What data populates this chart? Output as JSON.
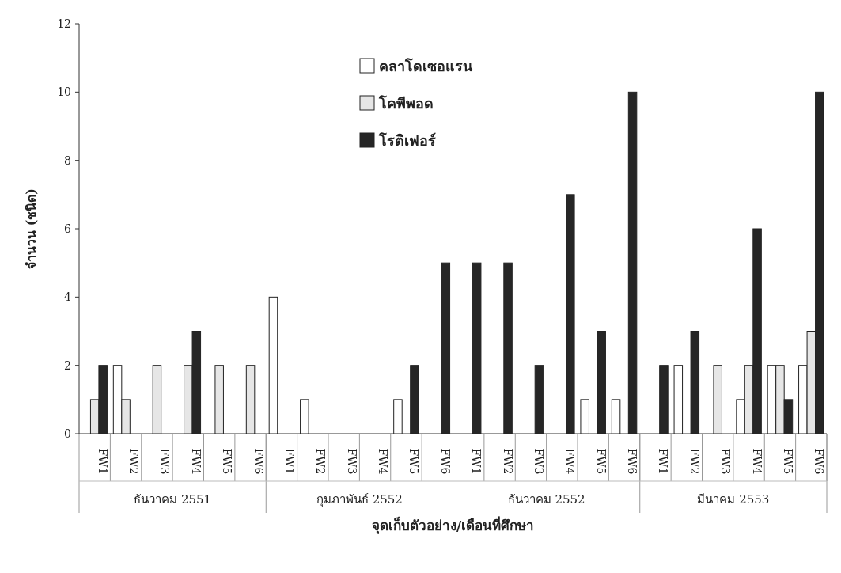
{
  "chart_data": {
    "type": "bar",
    "xlabel": "จุดเก็บตัวอย่าง/เดือนที่ศึกษา",
    "ylabel": "จำนวน (ชนิด)",
    "categories": [
      "FW1",
      "FW2",
      "FW3",
      "FW4",
      "FW5",
      "FW6",
      "FW1",
      "FW2",
      "FW3",
      "FW4",
      "FW5",
      "FW6",
      "FW1",
      "FW2",
      "FW3",
      "FW4",
      "FW5",
      "FW6",
      "FW1",
      "FW2",
      "FW3",
      "FW4",
      "FW5",
      "FW6"
    ],
    "series": [
      {
        "name": "คลาโดเซอแรน",
        "color": "#ffffff",
        "values": [
          0,
          2,
          0,
          0,
          0,
          0,
          4,
          1,
          0,
          0,
          1,
          0,
          0,
          0,
          0,
          0,
          1,
          1,
          0,
          2,
          0,
          1,
          2,
          2
        ]
      },
      {
        "name": "โคพีพอด",
        "color": "#e6e6e6",
        "values": [
          1,
          1,
          2,
          2,
          2,
          2,
          0,
          0,
          0,
          0,
          0,
          0,
          0,
          0,
          0,
          0,
          0,
          0,
          0,
          0,
          2,
          2,
          2,
          3
        ]
      },
      {
        "name": "โรติเฟอร์",
        "color": "#262626",
        "values": [
          2,
          0,
          0,
          3,
          0,
          0,
          0,
          0,
          0,
          0,
          2,
          5,
          5,
          5,
          2,
          7,
          3,
          10,
          2,
          3,
          0,
          6,
          1,
          10
        ]
      }
    ],
    "annotations": [
      "ธันวาคม 2551",
      "กุมภาพันธ์ 2552",
      "ธันวาคม 2552",
      "มีนาคม 2553"
    ],
    "ylim": [
      0,
      12
    ],
    "yticks": [
      0,
      2,
      4,
      6,
      8,
      10,
      12
    ],
    "legend": "top"
  }
}
